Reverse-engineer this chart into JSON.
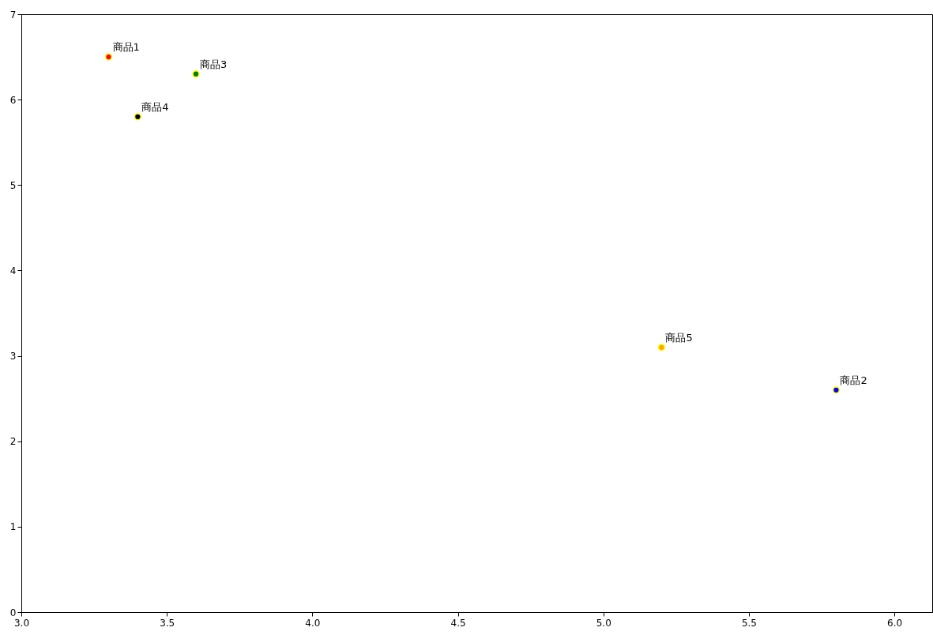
{
  "chart_data": {
    "type": "scatter",
    "marker": "circle",
    "grid": false,
    "xlim": [
      3.0,
      6.13
    ],
    "xticks": [
      {
        "value": 3,
        "label": "3.0"
      },
      {
        "value": 3.5,
        "label": "3.5"
      },
      {
        "value": 4,
        "label": "4.0"
      },
      {
        "value": 4.5,
        "label": "4.5"
      },
      {
        "value": 5,
        "label": "5.0"
      },
      {
        "value": 5.5,
        "label": "5.5"
      },
      {
        "value": 6,
        "label": "6.0"
      }
    ],
    "ylim": [
      0,
      7
    ],
    "yticks": [
      0,
      1,
      2,
      3,
      4,
      5,
      6,
      7
    ],
    "series": [
      {
        "name": "商品1",
        "color": "#ff0000",
        "x": [
          3.3
        ],
        "values": [
          6.5
        ]
      },
      {
        "name": "商品2",
        "color": "#0000ff",
        "x": [
          5.8
        ],
        "values": [
          2.6
        ]
      },
      {
        "name": "商品3",
        "color": "#008000",
        "x": [
          3.6
        ],
        "values": [
          6.3
        ]
      },
      {
        "name": "商品4",
        "color": "#000000",
        "x": [
          3.4
        ],
        "values": [
          5.8
        ]
      },
      {
        "name": "商品5",
        "color": "#ffa500",
        "x": [
          5.2
        ],
        "values": [
          3.1
        ]
      }
    ]
  }
}
